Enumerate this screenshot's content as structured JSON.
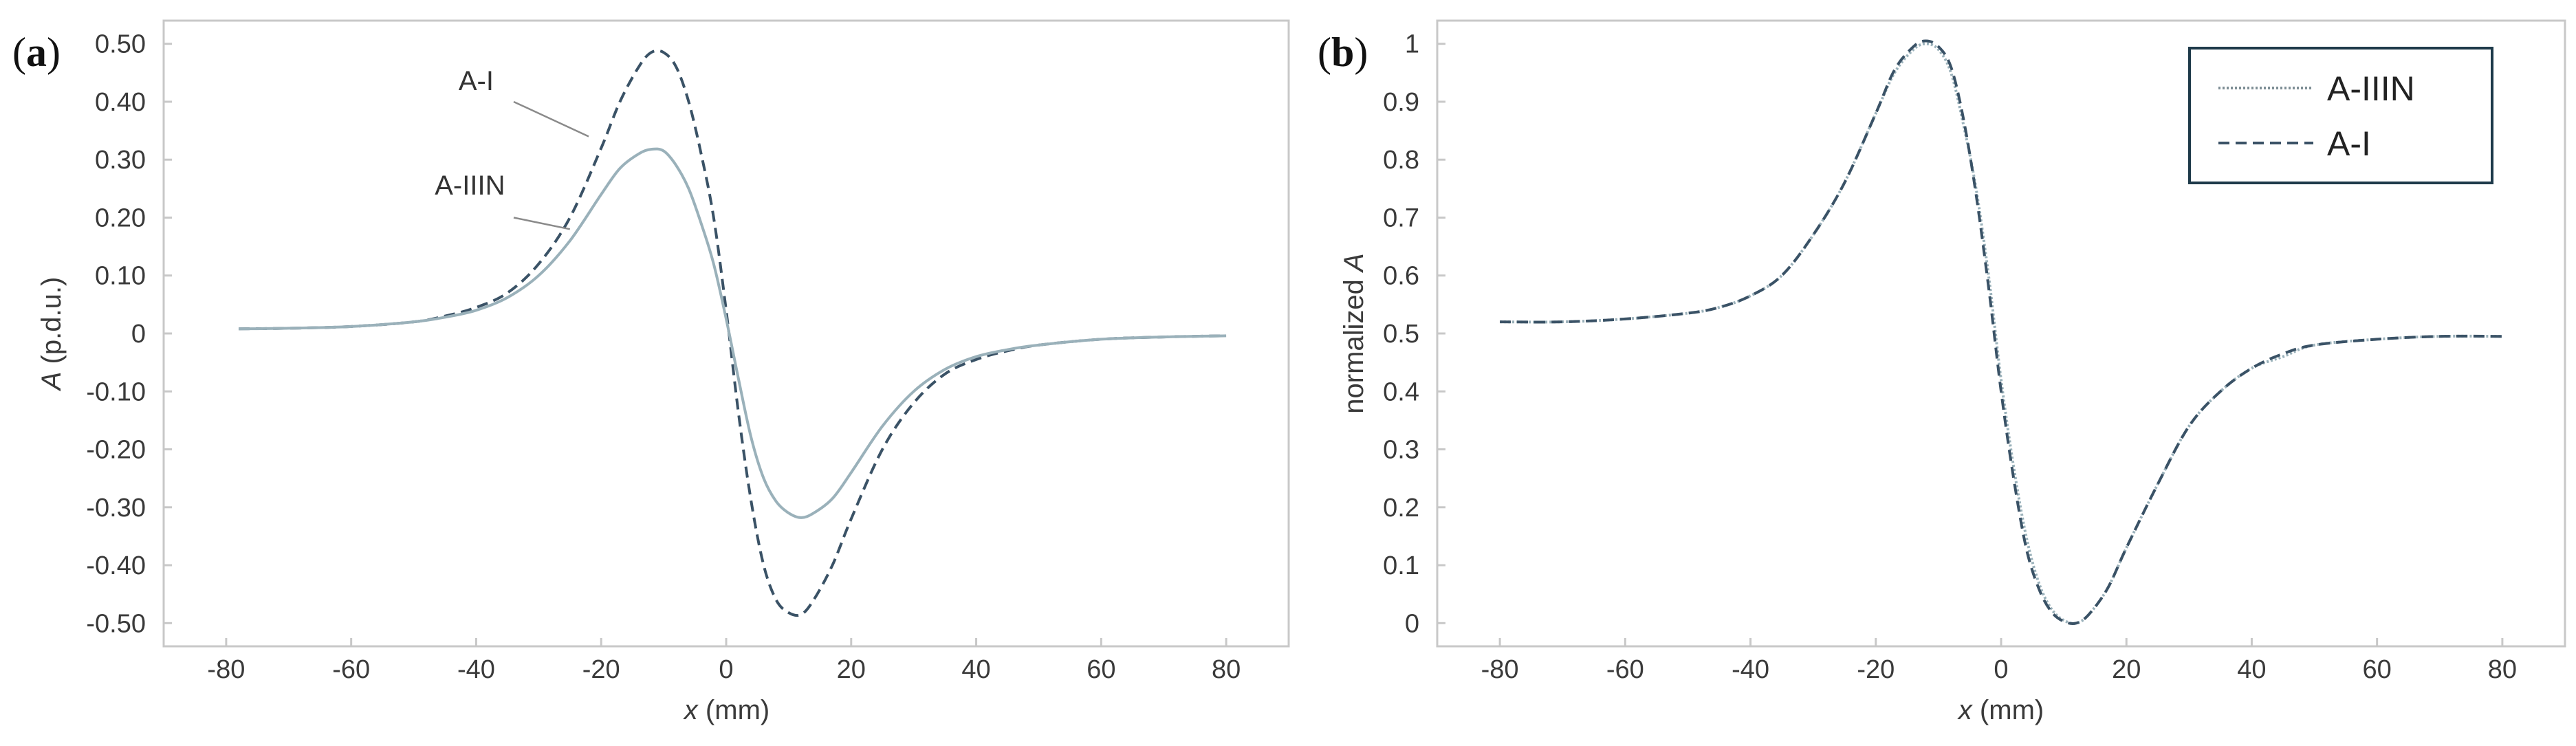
{
  "figure": {
    "panels": [
      "a",
      "b"
    ]
  },
  "colors": {
    "frame": "#c8c8c8",
    "a_i": "#3a5266",
    "a_iiin": "#9ab1ba",
    "legend_frame": "#1e3a4a"
  },
  "chart_data": [
    {
      "type": "line",
      "panel_label": "a",
      "xlabel": "x (mm)",
      "xlabel_var": "x",
      "xlabel_unit": "(mm)",
      "ylabel": "A (p.d.u.)",
      "ylabel_var": "A",
      "ylabel_unit": "(p.d.u.)",
      "xlim": [
        -90,
        90
      ],
      "ylim": [
        -0.54,
        0.54
      ],
      "grid": false,
      "xticks": [
        -80,
        -60,
        -40,
        -20,
        0,
        20,
        40,
        60,
        80
      ],
      "xtick_labels": [
        "-80",
        "-60",
        "-40",
        "-20",
        "0",
        "20",
        "40",
        "60",
        "80"
      ],
      "yticks": [
        0.5,
        0.4,
        0.3,
        0.2,
        0.1,
        0,
        -0.1,
        -0.2,
        -0.3,
        -0.4,
        -0.5
      ],
      "ytick_labels": [
        "0.50",
        "0.40",
        "0.30",
        "0.20",
        "0.10",
        "0",
        "-0.10",
        "-0.20",
        "-0.30",
        "-0.40",
        "-0.50"
      ],
      "series": [
        {
          "name": "A-I",
          "style": "dashed",
          "x": [
            -78,
            -70,
            -60,
            -50,
            -45,
            -40,
            -35,
            -30,
            -25,
            -20,
            -17,
            -14,
            -12,
            -10,
            -8,
            -6,
            -4,
            -2,
            0,
            2,
            4,
            6,
            8,
            10,
            12,
            14,
            17,
            20,
            25,
            30,
            35,
            40,
            45,
            50,
            60,
            70,
            80
          ],
          "y": [
            0.008,
            0.009,
            0.012,
            0.02,
            0.03,
            0.045,
            0.07,
            0.12,
            0.2,
            0.32,
            0.4,
            0.46,
            0.485,
            0.485,
            0.46,
            0.4,
            0.31,
            0.2,
            0.04,
            -0.14,
            -0.29,
            -0.4,
            -0.46,
            -0.482,
            -0.485,
            -0.46,
            -0.4,
            -0.32,
            -0.2,
            -0.12,
            -0.07,
            -0.045,
            -0.03,
            -0.02,
            -0.01,
            -0.006,
            -0.004
          ]
        },
        {
          "name": "A-IIIN",
          "style": "solid",
          "x": [
            -78,
            -70,
            -60,
            -50,
            -45,
            -40,
            -35,
            -30,
            -25,
            -20,
            -17,
            -14,
            -12,
            -10,
            -8,
            -6,
            -4,
            -2,
            0,
            2,
            4,
            6,
            8,
            10,
            12,
            14,
            17,
            20,
            25,
            30,
            35,
            40,
            45,
            50,
            60,
            70,
            80
          ],
          "y": [
            0.008,
            0.009,
            0.012,
            0.02,
            0.028,
            0.04,
            0.062,
            0.1,
            0.16,
            0.24,
            0.285,
            0.31,
            0.318,
            0.315,
            0.29,
            0.25,
            0.19,
            0.12,
            0.025,
            -0.08,
            -0.18,
            -0.25,
            -0.29,
            -0.31,
            -0.318,
            -0.31,
            -0.285,
            -0.24,
            -0.16,
            -0.1,
            -0.062,
            -0.04,
            -0.028,
            -0.02,
            -0.01,
            -0.006,
            -0.004
          ]
        }
      ],
      "annotations": [
        {
          "text": "A-I",
          "series": "A-I"
        },
        {
          "text": "A-IIIN",
          "series": "A-IIIN"
        }
      ]
    },
    {
      "type": "line",
      "panel_label": "b",
      "xlabel": "x (mm)",
      "xlabel_var": "x",
      "xlabel_unit": "(mm)",
      "ylabel": "normalized A",
      "ylabel_prefix": "normalized",
      "ylabel_var": "A",
      "xlim": [
        -90,
        90
      ],
      "ylim": [
        -0.04,
        1.04
      ],
      "grid": false,
      "legend_position": "top-right",
      "xticks": [
        -80,
        -60,
        -40,
        -20,
        0,
        20,
        40,
        60,
        80
      ],
      "xtick_labels": [
        "-80",
        "-60",
        "-40",
        "-20",
        "0",
        "20",
        "40",
        "60",
        "80"
      ],
      "yticks": [
        1,
        0.9,
        0.8,
        0.7,
        0.6,
        0.5,
        0.4,
        0.3,
        0.2,
        0.1,
        0
      ],
      "ytick_labels": [
        "1",
        "0.9",
        "0.8",
        "0.7",
        "0.6",
        "0.5",
        "0.4",
        "0.3",
        "0.2",
        "0.1",
        "0"
      ],
      "series": [
        {
          "name": "A-IIIN",
          "style": "dotted",
          "x": [
            -80,
            -70,
            -60,
            -50,
            -45,
            -40,
            -35,
            -30,
            -25,
            -20,
            -17,
            -14,
            -12,
            -10,
            -8,
            -6,
            -4,
            -2,
            0,
            2,
            4,
            6,
            8,
            10,
            12,
            14,
            17,
            20,
            25,
            30,
            35,
            40,
            45,
            50,
            60,
            70,
            80
          ],
          "y": [
            0.52,
            0.52,
            0.525,
            0.535,
            0.545,
            0.565,
            0.6,
            0.67,
            0.76,
            0.88,
            0.95,
            0.99,
            1.0,
            0.99,
            0.95,
            0.86,
            0.75,
            0.6,
            0.42,
            0.27,
            0.15,
            0.07,
            0.025,
            0.005,
            0.0,
            0.015,
            0.06,
            0.13,
            0.24,
            0.34,
            0.4,
            0.44,
            0.46,
            0.48,
            0.49,
            0.495,
            0.495
          ]
        },
        {
          "name": "A-I",
          "style": "dashed",
          "x": [
            -80,
            -70,
            -60,
            -50,
            -45,
            -40,
            -35,
            -30,
            -25,
            -20,
            -17,
            -14,
            -12,
            -10,
            -8,
            -6,
            -4,
            -2,
            0,
            2,
            4,
            6,
            8,
            10,
            12,
            14,
            17,
            20,
            25,
            30,
            35,
            40,
            45,
            50,
            60,
            70,
            80
          ],
          "y": [
            0.52,
            0.52,
            0.525,
            0.535,
            0.545,
            0.565,
            0.6,
            0.67,
            0.76,
            0.88,
            0.955,
            0.995,
            1.005,
            0.995,
            0.96,
            0.87,
            0.74,
            0.58,
            0.4,
            0.25,
            0.13,
            0.06,
            0.02,
            0.003,
            0.0,
            0.015,
            0.06,
            0.13,
            0.24,
            0.34,
            0.4,
            0.44,
            0.465,
            0.48,
            0.49,
            0.495,
            0.495
          ]
        }
      ],
      "legend": [
        {
          "label": "A-IIIN",
          "style": "dotted"
        },
        {
          "label": "A-I",
          "style": "dashed"
        }
      ]
    }
  ]
}
